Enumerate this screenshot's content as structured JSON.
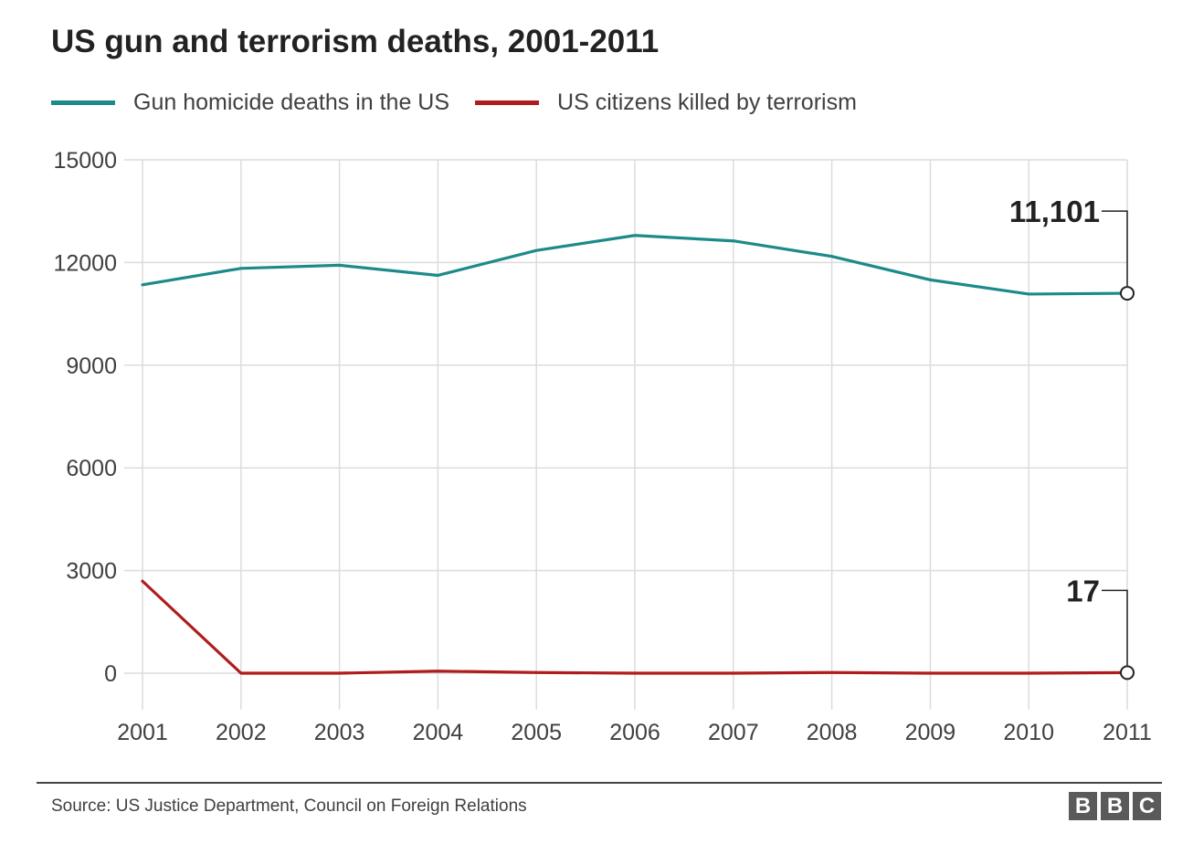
{
  "title": "US gun and terrorism deaths, 2001-2011",
  "source": "Source: US Justice Department, Council on Foreign Relations",
  "logo": [
    "B",
    "B",
    "C"
  ],
  "chart_data": {
    "type": "line",
    "title": "US gun and terrorism deaths, 2001-2011",
    "xlabel": "",
    "ylabel": "",
    "x": [
      2001,
      2002,
      2003,
      2004,
      2005,
      2006,
      2007,
      2008,
      2009,
      2010,
      2011
    ],
    "x_tick_labels": [
      "2001",
      "2002",
      "2003",
      "2004",
      "2005",
      "2006",
      "2007",
      "2008",
      "2009",
      "2010",
      "2011"
    ],
    "ylim": [
      0,
      15000
    ],
    "y_ticks": [
      0,
      3000,
      6000,
      9000,
      12000,
      15000
    ],
    "y_tick_labels": [
      "0",
      "3000",
      "6000",
      "9000",
      "12000",
      "15000"
    ],
    "grid": true,
    "legend_position": "top",
    "series": [
      {
        "name": "Gun homicide deaths in the US",
        "color": "#1d8a8a",
        "values": [
          11348,
          11829,
          11920,
          11624,
          12352,
          12791,
          12632,
          12179,
          11493,
          11078,
          11101
        ]
      },
      {
        "name": "US citizens killed by terrorism",
        "color": "#b01c1c",
        "values": [
          2689,
          0,
          0,
          60,
          20,
          0,
          0,
          20,
          0,
          0,
          17
        ]
      }
    ],
    "annotations": [
      {
        "series": 0,
        "x": 2011,
        "label": "11,101"
      },
      {
        "series": 1,
        "x": 2011,
        "label": "17"
      }
    ]
  }
}
